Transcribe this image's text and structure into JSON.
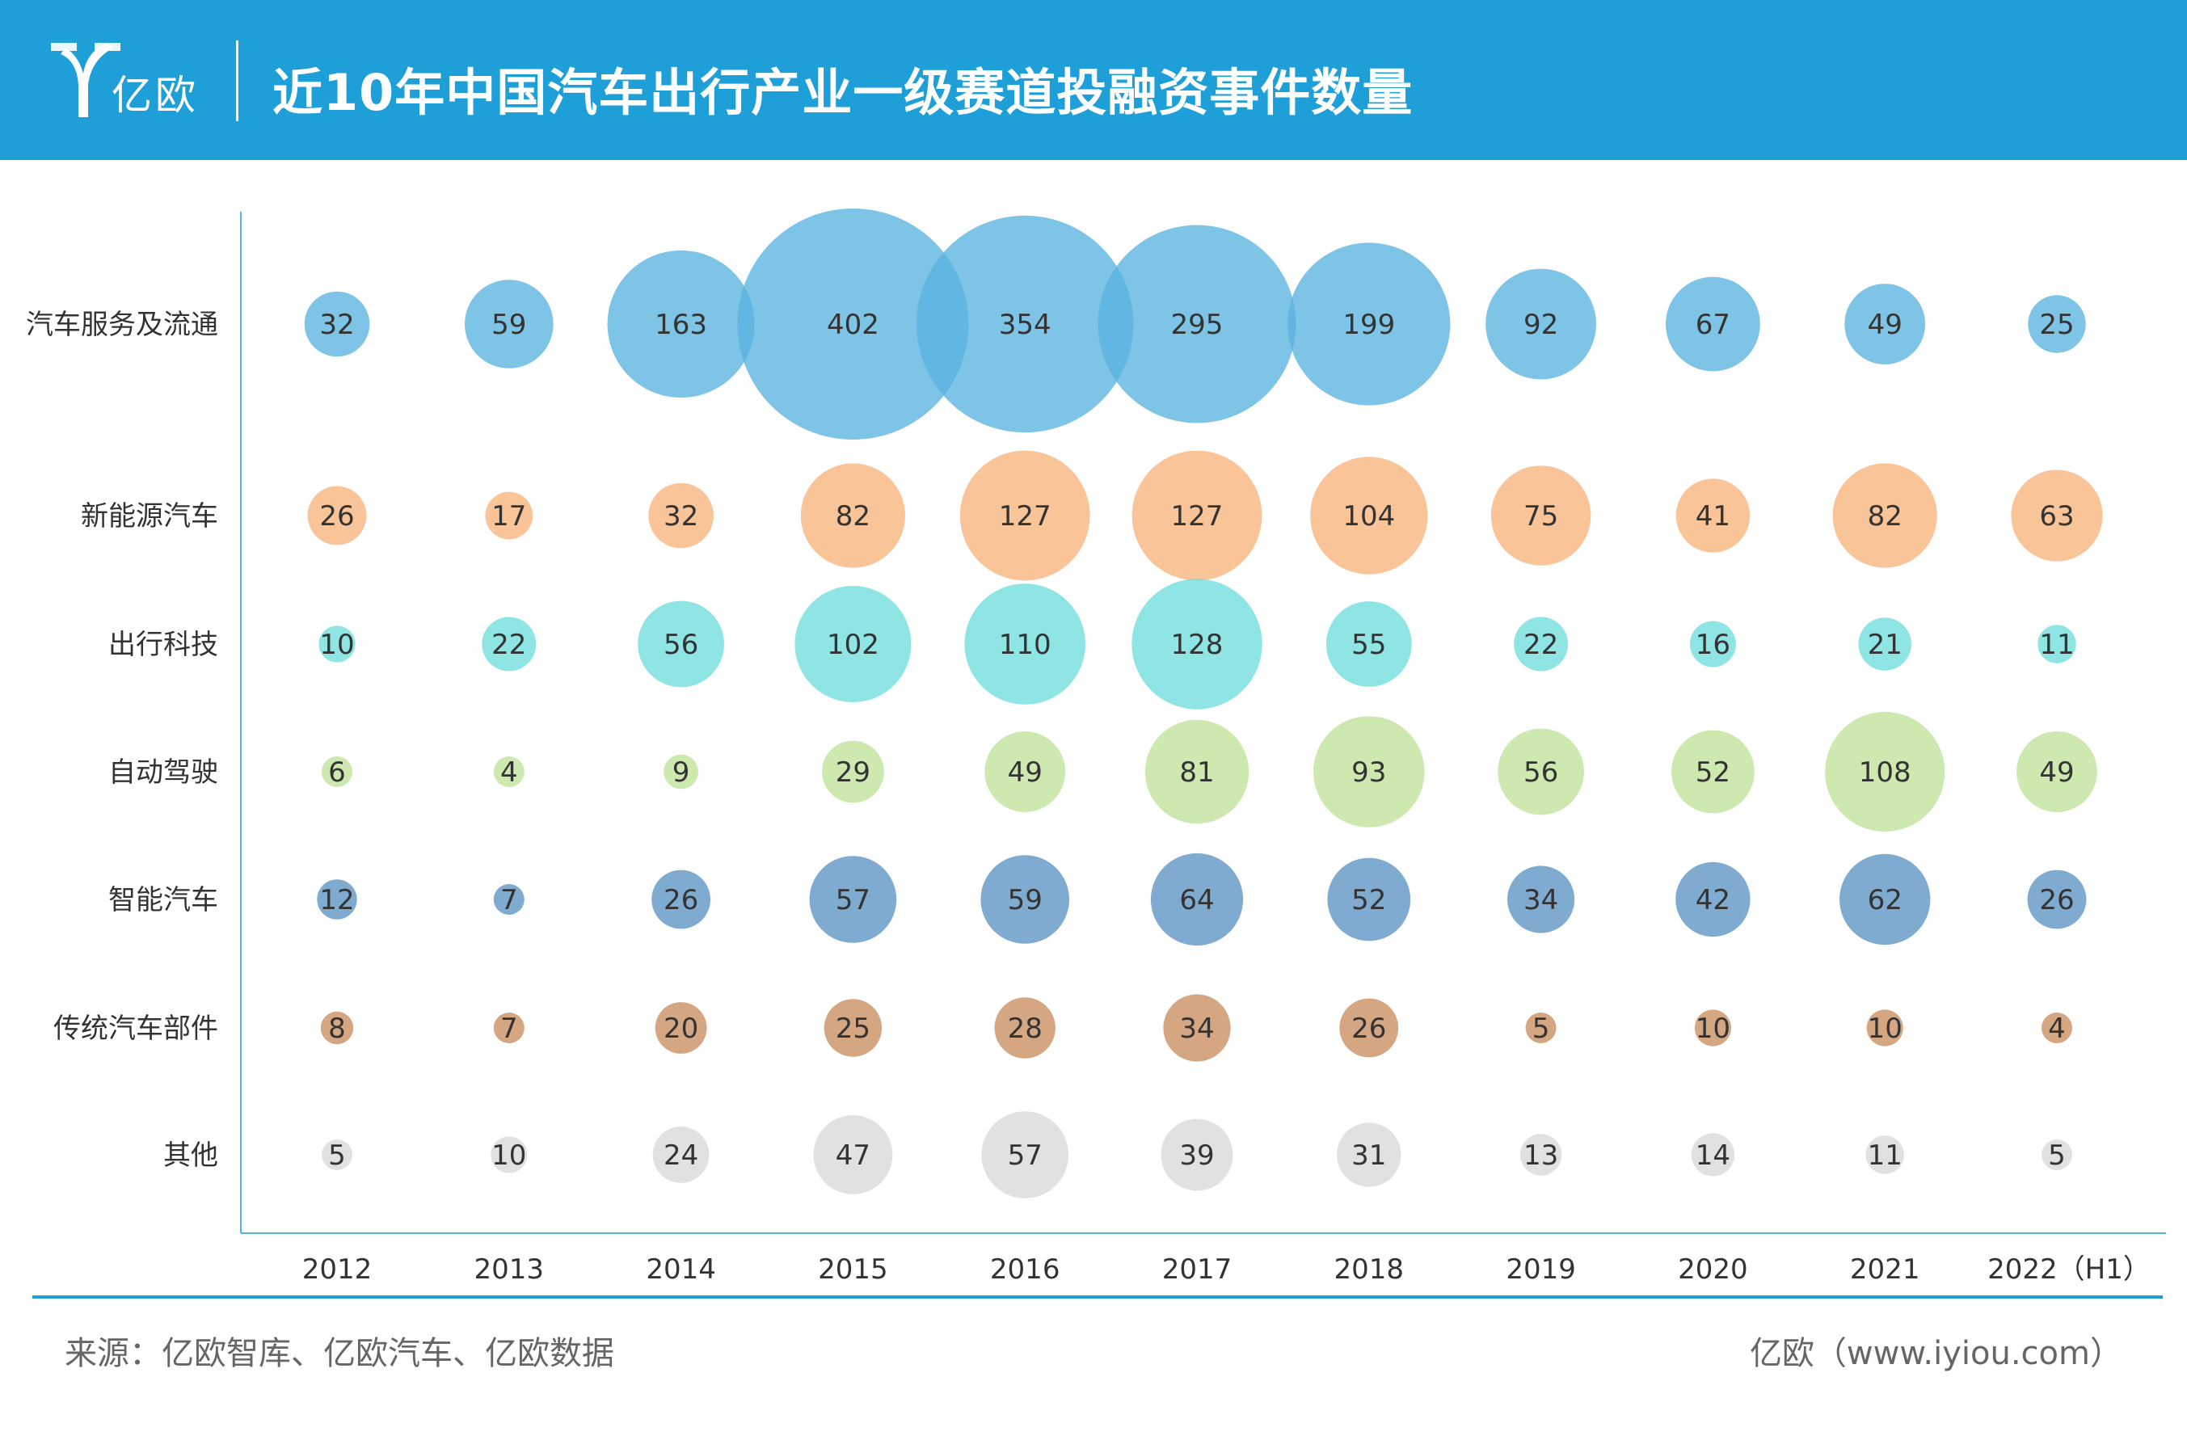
{
  "header": {
    "logo_text": "亿欧",
    "title": "近10年中国汽车出行产业一级赛道投融资事件数量",
    "bg_color": "#1e9fd8"
  },
  "chart_data": {
    "type": "bubble",
    "title": "近10年中国汽车出行产业一级赛道投融资事件数量",
    "x": [
      "2012",
      "2013",
      "2014",
      "2015",
      "2016",
      "2017",
      "2018",
      "2019",
      "2020",
      "2021",
      "2022（H1）"
    ],
    "series": [
      {
        "name": "汽车服务及流通",
        "color": "#5ab4e0",
        "values": [
          32,
          59,
          163,
          402,
          354,
          295,
          199,
          92,
          67,
          49,
          25
        ]
      },
      {
        "name": "新能源汽车",
        "color": "#f9b47c",
        "values": [
          26,
          17,
          32,
          82,
          127,
          127,
          104,
          75,
          41,
          82,
          63
        ]
      },
      {
        "name": "出行科技",
        "color": "#6fdcdc",
        "values": [
          10,
          22,
          56,
          102,
          110,
          128,
          55,
          22,
          16,
          21,
          11
        ]
      },
      {
        "name": "自动驾驶",
        "color": "#bfe39a",
        "values": [
          6,
          4,
          9,
          29,
          49,
          81,
          93,
          56,
          52,
          108,
          49
        ]
      },
      {
        "name": "智能汽车",
        "color": "#5b93c3",
        "values": [
          12,
          7,
          26,
          57,
          59,
          64,
          52,
          34,
          42,
          62,
          26
        ]
      },
      {
        "name": "传统汽车部件",
        "color": "#c88e5f",
        "values": [
          8,
          7,
          20,
          25,
          28,
          34,
          26,
          5,
          10,
          10,
          4
        ]
      },
      {
        "name": "其他",
        "color": "#d9d9d9",
        "values": [
          5,
          10,
          24,
          47,
          57,
          39,
          31,
          13,
          14,
          11,
          5
        ]
      }
    ]
  },
  "footer": {
    "source": "来源：亿欧智库、亿欧汽车、亿欧数据",
    "credit": "亿欧（www.iyiou.com）",
    "line_color": "#1e9fd8"
  }
}
